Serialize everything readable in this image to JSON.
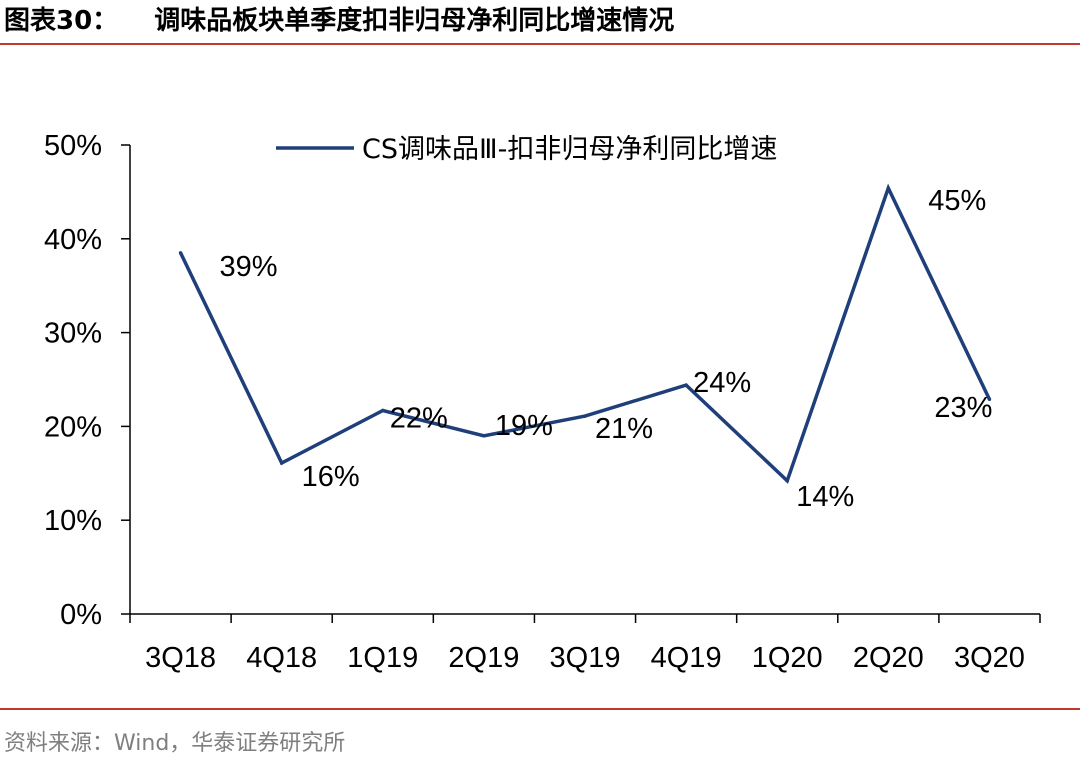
{
  "figure": {
    "label": "图表30：",
    "title": "调味品板块单季度扣非归母净利同比增速情况",
    "source": "资料来源：Wind，华泰证券研究所",
    "accent_color": "#c0392b"
  },
  "chart_data": {
    "type": "line",
    "title": "调味品板块单季度扣非归母净利同比增速情况",
    "xlabel": "",
    "ylabel": "",
    "categories": [
      "3Q18",
      "4Q18",
      "1Q19",
      "2Q19",
      "3Q19",
      "4Q19",
      "1Q20",
      "2Q20",
      "3Q20"
    ],
    "series": [
      {
        "name": "CS调味品Ⅲ-扣非归母净利同比增速",
        "color": "#1f3f7a",
        "values": [
          38.5,
          16.1,
          21.7,
          19.0,
          21.1,
          24.4,
          14.2,
          45.4,
          22.9
        ],
        "labels": [
          "39%",
          "16%",
          "22%",
          "19%",
          "21%",
          "24%",
          "14%",
          "45%",
          "23%"
        ]
      }
    ],
    "ylim": [
      0,
      50
    ],
    "yticks": [
      0,
      10,
      20,
      30,
      40,
      50
    ],
    "ytick_labels": [
      "0%",
      "10%",
      "20%",
      "30%",
      "40%",
      "50%"
    ],
    "grid": false,
    "legend_position": "top-right"
  }
}
